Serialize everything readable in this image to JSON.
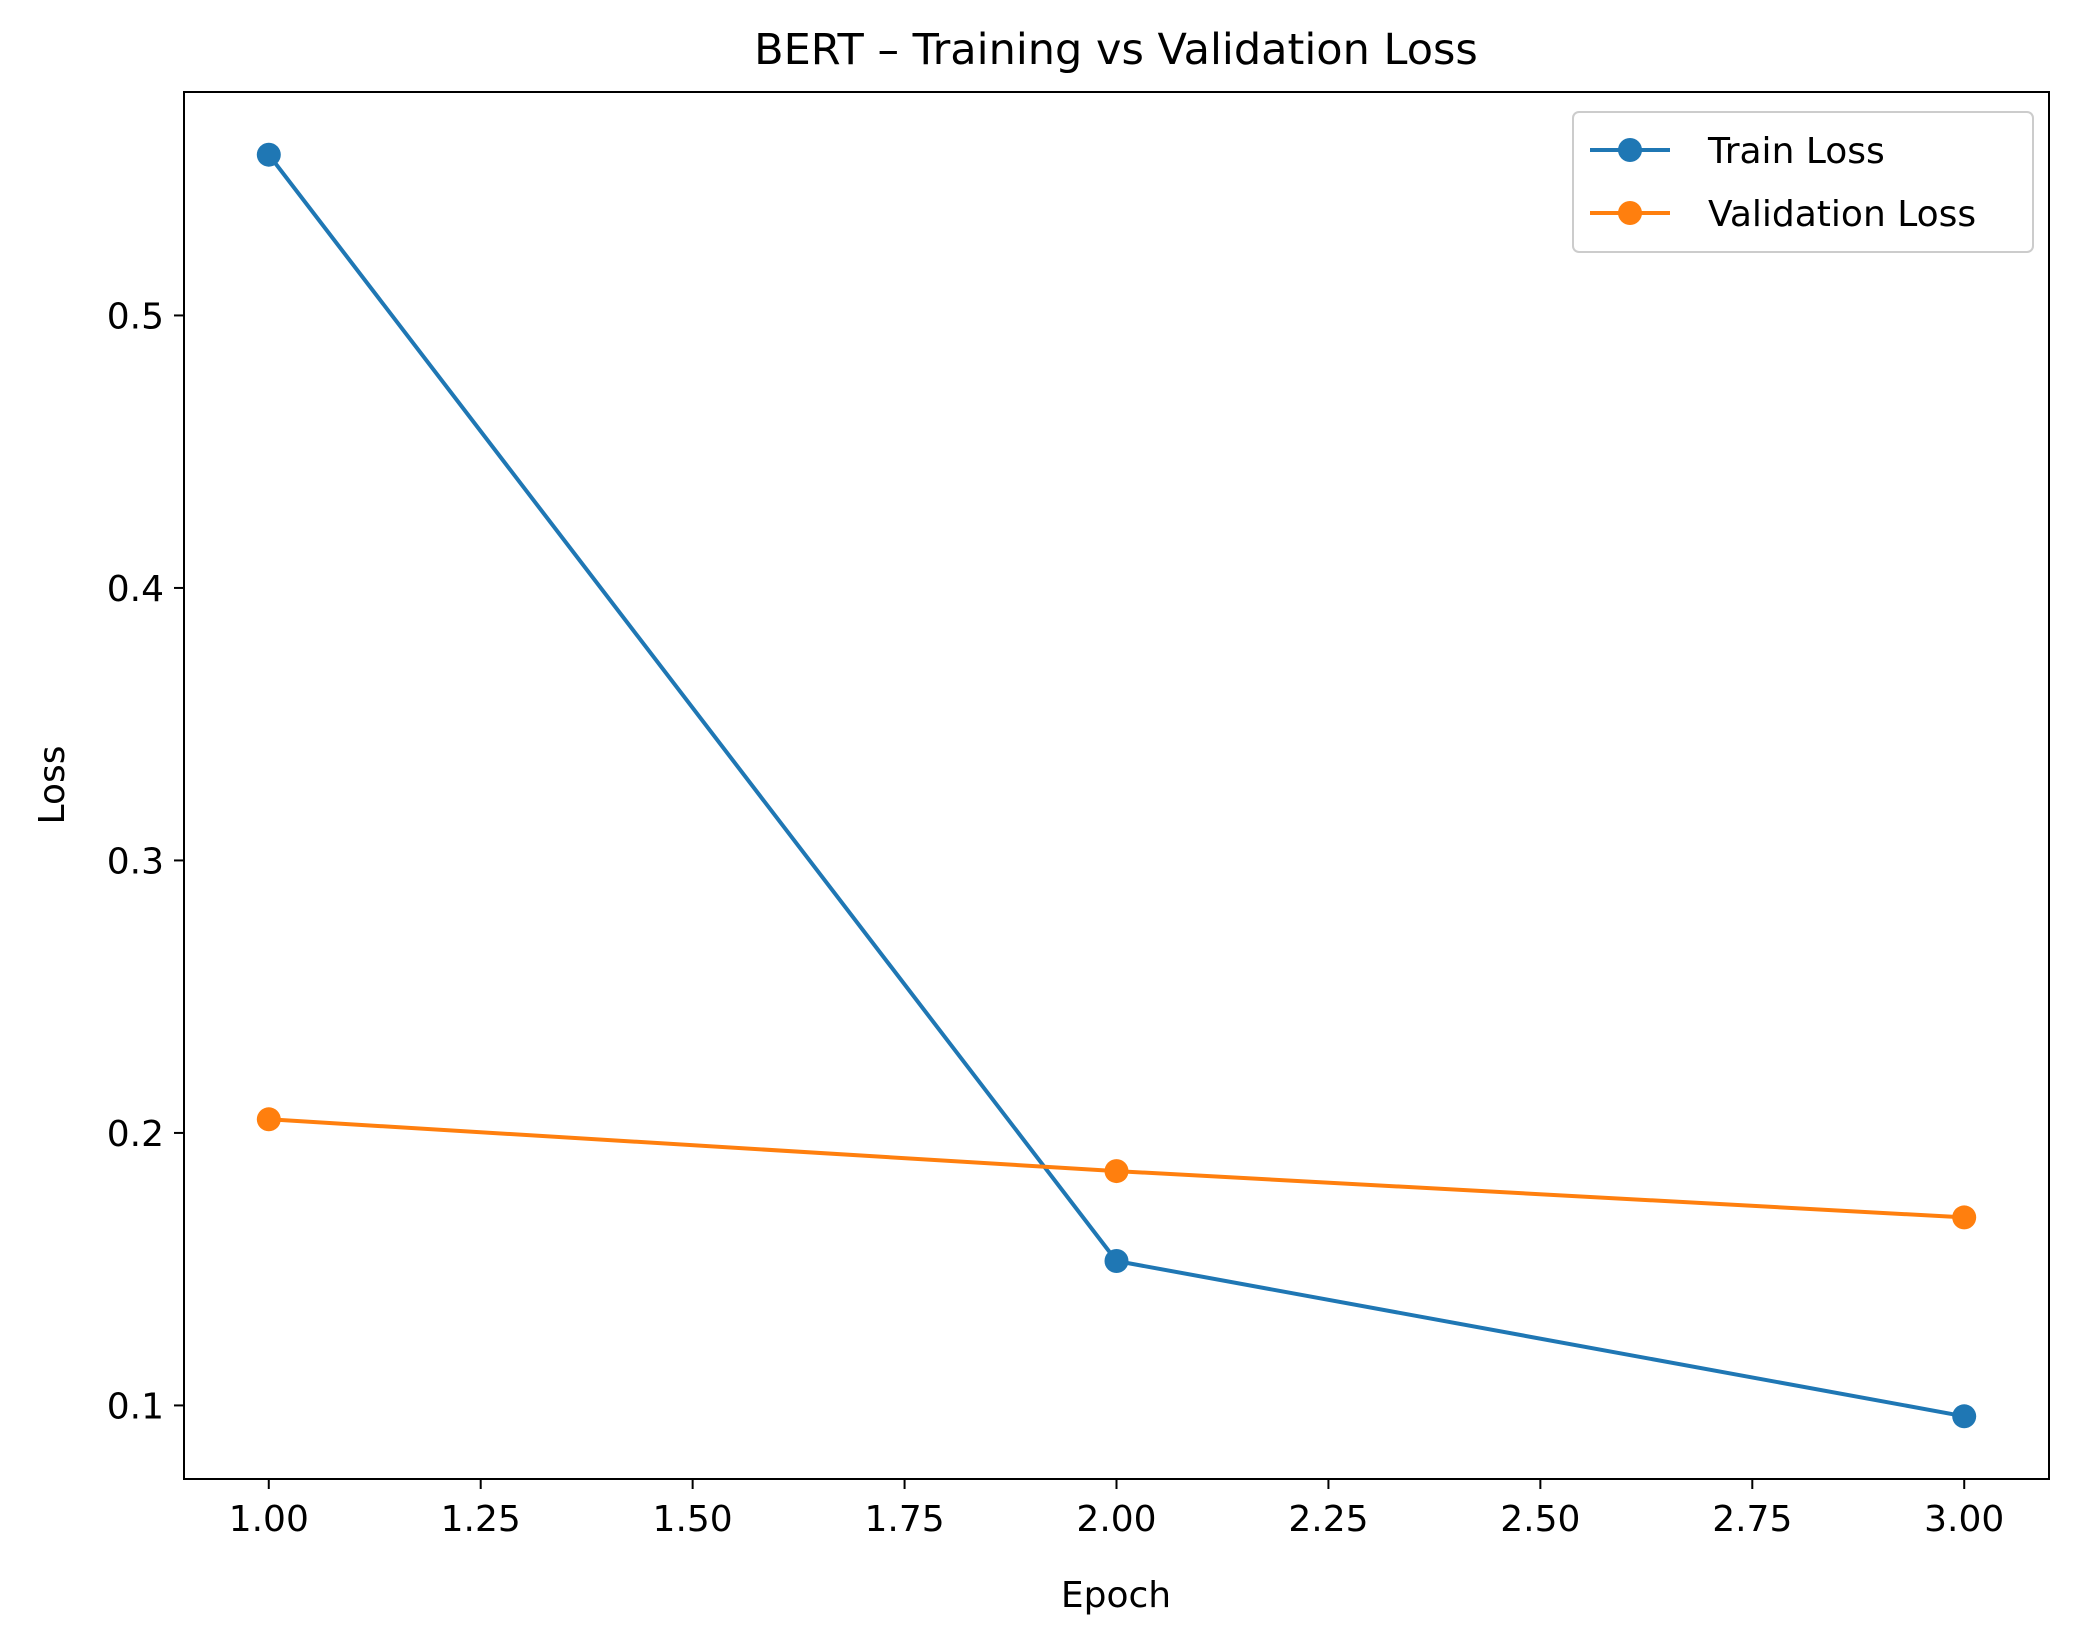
{
  "chart_data": {
    "type": "line",
    "title": "BERT – Training vs Validation Loss",
    "xlabel": "Epoch",
    "ylabel": "Loss",
    "x": [
      1,
      2,
      3
    ],
    "series": [
      {
        "name": "Train Loss",
        "values": [
          0.559,
          0.153,
          0.096
        ],
        "color": "#1f77b4",
        "marker": "circle"
      },
      {
        "name": "Validation Loss",
        "values": [
          0.205,
          0.186,
          0.169
        ],
        "color": "#ff7f0e",
        "marker": "circle"
      }
    ],
    "xlim": [
      0.9,
      3.1
    ],
    "ylim": [
      0.073,
      0.582
    ],
    "xticks": [
      1.0,
      1.25,
      1.5,
      1.75,
      2.0,
      2.25,
      2.5,
      2.75,
      3.0
    ],
    "xtick_labels": [
      "1.00",
      "1.25",
      "1.50",
      "1.75",
      "2.00",
      "2.25",
      "2.50",
      "2.75",
      "3.00"
    ],
    "yticks": [
      0.1,
      0.2,
      0.3,
      0.4,
      0.5
    ],
    "ytick_labels": [
      "0.1",
      "0.2",
      "0.3",
      "0.4",
      "0.5"
    ],
    "grid": false,
    "legend_position": "top-right"
  }
}
